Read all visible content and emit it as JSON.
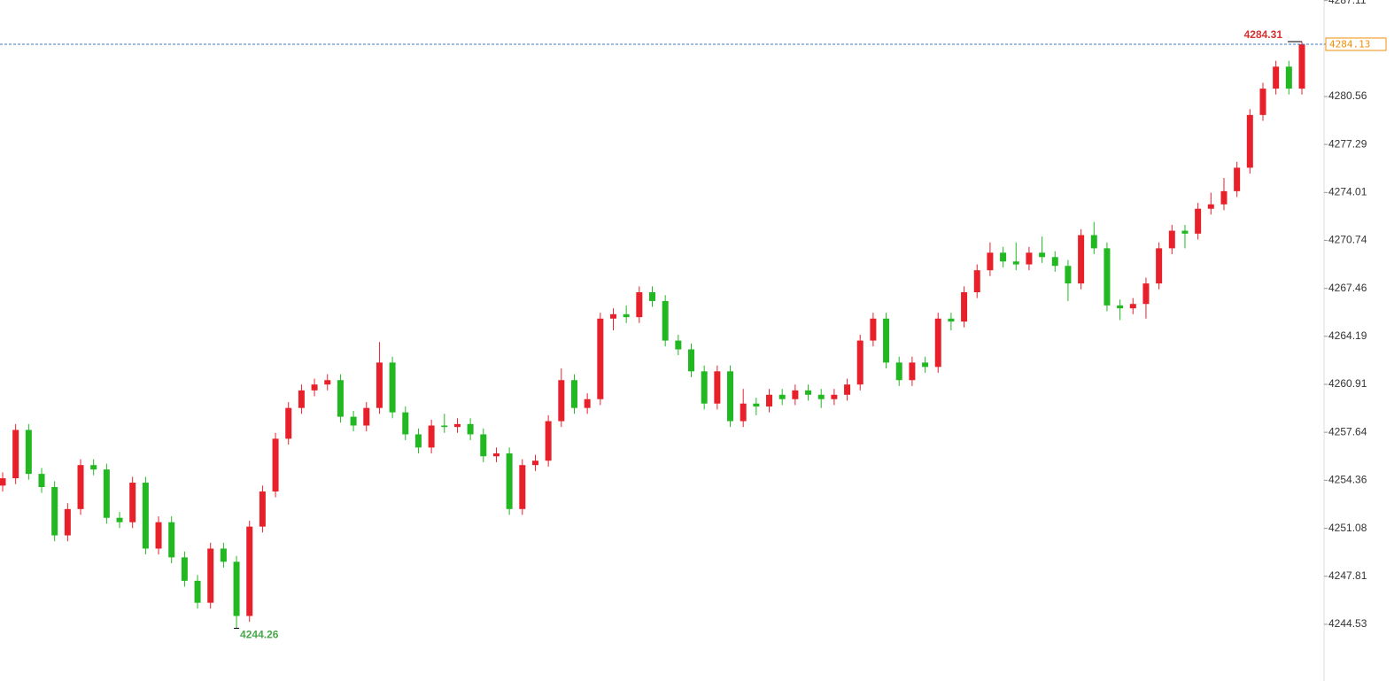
{
  "chart_data": {
    "type": "candlestick",
    "up_color": "#e8202a",
    "down_color": "#22b822",
    "last_line_color": "#3a78c8",
    "last_label_color": "#f0900a",
    "ylim": [
      4240.66,
      4287.15
    ],
    "yticks": [
      4244.53,
      4247.81,
      4251.08,
      4254.36,
      4257.64,
      4260.91,
      4264.19,
      4267.46,
      4270.74,
      4274.01,
      4277.29,
      4280.56,
      4287.11
    ],
    "open": [
      4254.0,
      4254.5,
      4257.8,
      4254.8,
      4253.9,
      4250.6,
      4252.4,
      4255.4,
      4255.1,
      4251.8,
      4251.5,
      4254.2,
      4249.7,
      4251.5,
      4249.1,
      4247.5,
      4246.0,
      4249.7,
      4248.8,
      4245.1,
      4251.2,
      4253.6,
      4257.2,
      4259.3,
      4260.5,
      4260.9,
      4261.2,
      4258.7,
      4258.1,
      4259.3,
      4262.4,
      4259.0,
      4257.5,
      4256.6,
      4258.1,
      4258.0,
      4258.2,
      4257.5,
      4256.0,
      4256.2,
      4252.4,
      4255.4,
      4255.7,
      4258.4,
      4261.2,
      4259.3,
      4259.9,
      4265.4,
      4265.7,
      4265.5,
      4267.2,
      4266.6,
      4263.9,
      4263.3,
      4261.8,
      4259.6,
      4261.8,
      4258.4,
      4259.6,
      4259.4,
      4260.2,
      4259.9,
      4260.5,
      4260.2,
      4259.9,
      4260.2,
      4260.9,
      4263.9,
      4265.4,
      4262.4,
      4261.2,
      4262.4,
      4262.1,
      4265.4,
      4265.2,
      4267.2,
      4268.7,
      4269.9,
      4269.3,
      4269.1,
      4269.9,
      4269.6,
      4269.0,
      4267.8,
      4271.1,
      4270.2,
      4266.3,
      4266.1,
      4266.4,
      4267.8,
      4270.2,
      4271.4,
      4271.2,
      4272.9,
      4273.2,
      4274.1,
      4275.7,
      4279.3,
      4281.1,
      4282.6,
      4281.1
    ],
    "high": [
      4254.9,
      4258.2,
      4258.2,
      4255.2,
      4254.3,
      4252.8,
      4255.8,
      4255.8,
      4255.5,
      4252.2,
      4254.6,
      4254.6,
      4251.9,
      4251.9,
      4249.5,
      4247.9,
      4250.1,
      4250.1,
      4249.2,
      4251.6,
      4254.0,
      4257.6,
      4259.7,
      4260.9,
      4261.3,
      4261.6,
      4261.6,
      4259.1,
      4259.7,
      4263.8,
      4262.8,
      4259.4,
      4257.9,
      4258.5,
      4258.9,
      4258.6,
      4258.6,
      4257.9,
      4256.6,
      4256.6,
      4255.8,
      4256.1,
      4258.8,
      4262.0,
      4261.6,
      4260.3,
      4265.8,
      4266.1,
      4266.3,
      4267.6,
      4267.6,
      4267.0,
      4264.3,
      4263.7,
      4262.2,
      4262.2,
      4262.2,
      4260.6,
      4260.0,
      4260.6,
      4260.6,
      4260.9,
      4260.9,
      4260.6,
      4260.6,
      4261.3,
      4264.3,
      4265.8,
      4265.8,
      4262.8,
      4262.8,
      4262.8,
      4265.8,
      4265.8,
      4267.6,
      4269.1,
      4270.6,
      4270.3,
      4270.6,
      4270.3,
      4271.0,
      4270.0,
      4269.4,
      4271.5,
      4272.0,
      4270.6,
      4266.7,
      4266.8,
      4268.2,
      4270.6,
      4271.8,
      4271.8,
      4273.3,
      4274.0,
      4275.0,
      4276.1,
      4279.7,
      4281.5,
      4283.0,
      4283.0,
      4284.31
    ],
    "low": [
      4253.6,
      4254.1,
      4254.4,
      4253.5,
      4250.2,
      4250.2,
      4252.0,
      4254.7,
      4251.4,
      4251.1,
      4251.1,
      4249.3,
      4249.3,
      4248.7,
      4247.1,
      4245.6,
      4245.6,
      4248.4,
      4244.26,
      4244.7,
      4250.8,
      4253.2,
      4256.8,
      4258.9,
      4260.1,
      4260.5,
      4258.3,
      4257.7,
      4257.7,
      4258.9,
      4258.6,
      4257.1,
      4256.2,
      4256.2,
      4257.6,
      4257.6,
      4257.1,
      4255.6,
      4255.6,
      4252.0,
      4252.0,
      4255.0,
      4255.3,
      4258.0,
      4258.9,
      4258.9,
      4259.5,
      4264.6,
      4265.1,
      4265.1,
      4266.2,
      4263.5,
      4262.9,
      4261.4,
      4259.2,
      4259.2,
      4258.0,
      4258.0,
      4258.8,
      4259.0,
      4259.5,
      4259.5,
      4259.8,
      4259.3,
      4259.5,
      4259.8,
      4260.5,
      4263.5,
      4262.0,
      4260.8,
      4260.8,
      4261.7,
      4261.7,
      4264.6,
      4264.8,
      4266.8,
      4268.3,
      4268.9,
      4268.7,
      4268.7,
      4269.2,
      4268.6,
      4266.6,
      4267.4,
      4269.8,
      4265.9,
      4265.3,
      4265.7,
      4265.4,
      4267.4,
      4269.8,
      4270.2,
      4270.8,
      4272.5,
      4272.8,
      4273.7,
      4275.3,
      4278.9,
      4280.7,
      4280.7,
      4280.7
    ],
    "close": [
      4254.5,
      4257.8,
      4254.8,
      4253.9,
      4250.6,
      4252.4,
      4255.4,
      4255.1,
      4251.8,
      4251.5,
      4254.2,
      4249.7,
      4251.5,
      4249.1,
      4247.5,
      4246.0,
      4249.7,
      4248.8,
      4245.1,
      4251.2,
      4253.6,
      4257.2,
      4259.3,
      4260.5,
      4260.9,
      4261.2,
      4258.7,
      4258.1,
      4259.3,
      4262.4,
      4259.0,
      4257.5,
      4256.6,
      4258.1,
      4258.0,
      4258.2,
      4257.5,
      4256.0,
      4256.2,
      4252.4,
      4255.4,
      4255.7,
      4258.4,
      4261.2,
      4259.3,
      4259.9,
      4265.4,
      4265.7,
      4265.5,
      4267.2,
      4266.6,
      4263.9,
      4263.3,
      4261.8,
      4259.6,
      4261.8,
      4258.4,
      4259.6,
      4259.4,
      4260.2,
      4259.9,
      4260.5,
      4260.2,
      4259.9,
      4260.2,
      4260.9,
      4263.9,
      4265.4,
      4262.4,
      4261.2,
      4262.4,
      4262.1,
      4265.4,
      4265.2,
      4267.2,
      4268.7,
      4269.9,
      4269.3,
      4269.1,
      4269.9,
      4269.6,
      4269.0,
      4267.8,
      4271.1,
      4270.2,
      4266.3,
      4266.1,
      4266.4,
      4267.8,
      4270.2,
      4271.4,
      4271.2,
      4272.9,
      4273.2,
      4274.1,
      4275.7,
      4279.3,
      4281.1,
      4282.6,
      4281.1,
      4284.13
    ]
  }
}
